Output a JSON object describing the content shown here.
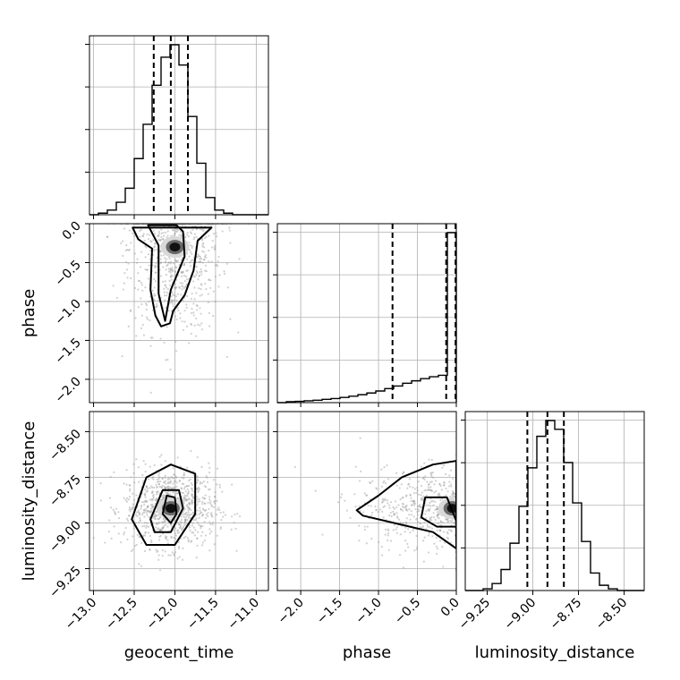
{
  "chart_data": {
    "type": "corner",
    "parameters": [
      {
        "name": "geocent_time",
        "range": [
          -13.05,
          -10.85
        ],
        "ticks": [
          -13.0,
          -12.5,
          -12.0,
          -11.5,
          -11.0
        ],
        "tick_labels": [
          "−13.0",
          "−12.5",
          "−12.0",
          "−11.5",
          "−11.0"
        ],
        "quantiles": [
          -12.26,
          -12.05,
          -11.84
        ],
        "hist_edges": [
          -13.05,
          -12.94,
          -12.83,
          -12.72,
          -12.61,
          -12.5,
          -12.39,
          -12.28,
          -12.17,
          -12.06,
          -11.95,
          -11.84,
          -11.73,
          -11.62,
          -11.51,
          -11.4,
          -11.29,
          -11.18,
          -11.07,
          -10.96,
          -10.85
        ],
        "hist_counts": [
          0,
          1,
          3,
          8,
          17,
          36,
          58,
          83,
          101,
          109,
          96,
          63,
          33,
          11,
          3,
          1,
          0,
          0,
          0,
          0
        ]
      },
      {
        "name": "phase",
        "range": [
          -2.3,
          0.0
        ],
        "ticks": [
          -2.0,
          -1.5,
          -1.0,
          -0.5,
          0.0
        ],
        "tick_labels": [
          "−2.0",
          "−1.5",
          "−1.0",
          "−0.5",
          "0.0"
        ],
        "quantiles": [
          -0.82,
          -0.13,
          -0.01
        ],
        "hist_edges": [
          -2.3,
          -2.185,
          -2.07,
          -1.955,
          -1.84,
          -1.725,
          -1.61,
          -1.495,
          -1.38,
          -1.265,
          -1.15,
          -1.035,
          -0.92,
          -0.805,
          -0.69,
          -0.575,
          -0.46,
          -0.345,
          -0.23,
          -0.115,
          0.0
        ],
        "hist_counts": [
          0,
          0.5,
          0.7,
          1,
          1.3,
          1.8,
          2.2,
          2.8,
          3.5,
          4.3,
          5.2,
          6.3,
          7.6,
          9,
          10.5,
          11.8,
          13,
          14,
          14.8,
          92
        ]
      },
      {
        "name": "luminosity_distance",
        "range": [
          -9.37,
          -8.39
        ],
        "ticks": [
          -9.25,
          -9.0,
          -8.75,
          -8.5
        ],
        "tick_labels": [
          "−9.25",
          "−9.00",
          "−8.75",
          "−8.50"
        ],
        "quantiles": [
          -9.03,
          -8.92,
          -8.83
        ],
        "hist_edges": [
          -9.37,
          -9.321,
          -9.272,
          -9.223,
          -9.174,
          -9.125,
          -9.076,
          -9.027,
          -8.978,
          -8.929,
          -8.88,
          -8.831,
          -8.782,
          -8.733,
          -8.684,
          -8.635,
          -8.586,
          -8.537,
          -8.488,
          -8.439,
          -8.39
        ],
        "hist_counts": [
          0,
          0,
          1,
          4,
          12,
          27,
          48,
          70,
          88,
          97,
          92,
          73,
          50,
          28,
          10,
          3,
          1,
          0,
          0,
          0
        ]
      }
    ],
    "scatter_2d": [
      {
        "x": "geocent_time",
        "y": "phase",
        "center": [
          -12.0,
          -0.3
        ],
        "contours": [
          [
            [
              -12.33,
              -0.02
            ],
            [
              -12.2,
              -0.28
            ],
            [
              -12.2,
              -0.9
            ],
            [
              -12.12,
              -1.25
            ],
            [
              -12.05,
              -0.85
            ],
            [
              -11.88,
              -0.42
            ],
            [
              -11.9,
              -0.1
            ],
            [
              -11.98,
              -0.02
            ]
          ],
          [
            [
              -12.52,
              -0.05
            ],
            [
              -12.45,
              -0.2
            ],
            [
              -12.28,
              -0.32
            ],
            [
              -12.3,
              -0.85
            ],
            [
              -12.24,
              -1.18
            ],
            [
              -12.17,
              -1.32
            ],
            [
              -12.06,
              -1.28
            ],
            [
              -12.02,
              -1.12
            ],
            [
              -11.88,
              -0.92
            ],
            [
              -11.77,
              -0.6
            ],
            [
              -11.72,
              -0.22
            ],
            [
              -11.55,
              -0.05
            ]
          ]
        ]
      },
      {
        "x": "geocent_time",
        "y": "luminosity_distance",
        "center": [
          -12.05,
          -8.92
        ],
        "contours": [
          [
            [
              -12.15,
              -8.95
            ],
            [
              -12.1,
              -8.85
            ],
            [
              -12.0,
              -8.86
            ],
            [
              -11.98,
              -8.95
            ],
            [
              -12.05,
              -9.0
            ]
          ],
          [
            [
              -12.3,
              -8.98
            ],
            [
              -12.15,
              -8.82
            ],
            [
              -11.95,
              -8.82
            ],
            [
              -11.9,
              -8.92
            ],
            [
              -12.05,
              -9.05
            ],
            [
              -12.25,
              -9.05
            ]
          ],
          [
            [
              -12.53,
              -8.98
            ],
            [
              -12.35,
              -8.75
            ],
            [
              -12.05,
              -8.68
            ],
            [
              -11.75,
              -8.73
            ],
            [
              -11.75,
              -8.95
            ],
            [
              -12.0,
              -9.12
            ],
            [
              -12.35,
              -9.12
            ]
          ]
        ]
      },
      {
        "x": "phase",
        "y": "luminosity_distance",
        "center": [
          -0.05,
          -8.92
        ],
        "contours": [
          [
            [
              0.0,
              -8.99
            ],
            [
              -0.12,
              -8.86
            ],
            [
              -0.4,
              -8.86
            ],
            [
              -0.45,
              -8.97
            ],
            [
              -0.25,
              -9.02
            ],
            [
              0.0,
              -9.02
            ]
          ],
          [
            [
              0.0,
              -9.14
            ],
            [
              -0.3,
              -9.05
            ],
            [
              -0.8,
              -9.0
            ],
            [
              -1.2,
              -8.96
            ],
            [
              -1.28,
              -8.93
            ],
            [
              -1.0,
              -8.85
            ],
            [
              -0.7,
              -8.75
            ],
            [
              -0.3,
              -8.68
            ],
            [
              0.0,
              -8.66
            ]
          ]
        ]
      }
    ]
  }
}
